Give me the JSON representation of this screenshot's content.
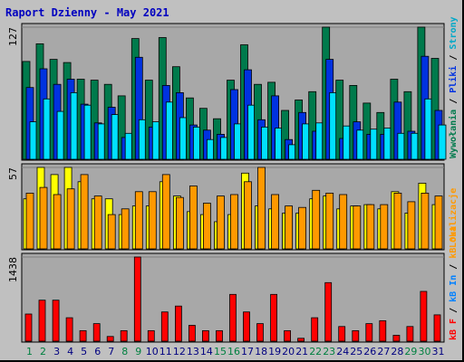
{
  "chart_data": [
    {
      "type": "bar",
      "title": "Raport Dzienny -  May 2021",
      "ytick": "127",
      "ylim": [
        0,
        127
      ],
      "categories": [
        "1",
        "2",
        "3",
        "4",
        "5",
        "6",
        "7",
        "8",
        "9",
        "10",
        "11",
        "12",
        "13",
        "14",
        "15",
        "16",
        "17",
        "18",
        "19",
        "20",
        "21",
        "22",
        "23",
        "24",
        "25",
        "26",
        "27",
        "28",
        "29",
        "30",
        "31"
      ],
      "weekend_days": [
        "1",
        "2",
        "8",
        "9",
        "15",
        "16",
        "22",
        "23",
        "29",
        "30"
      ],
      "series": [
        {
          "name": "Wywołania",
          "color": "#007a4c",
          "values": [
            94,
            111,
            96,
            93,
            77,
            76,
            72,
            61,
            116,
            76,
            117,
            89,
            59,
            49,
            39,
            76,
            110,
            72,
            74,
            47,
            57,
            65,
            127,
            76,
            71,
            54,
            45,
            77,
            65,
            127,
            97
          ]
        },
        {
          "name": "Pliki",
          "color": "#0032e0",
          "values": [
            69,
            87,
            72,
            77,
            53,
            35,
            50,
            21,
            98,
            31,
            71,
            64,
            33,
            28,
            24,
            67,
            86,
            38,
            61,
            19,
            45,
            27,
            96,
            20,
            36,
            24,
            24,
            55,
            27,
            99,
            47
          ]
        },
        {
          "name": "Strony",
          "color": "#00e0ff",
          "values": [
            36,
            58,
            46,
            64,
            52,
            34,
            43,
            25,
            38,
            36,
            55,
            40,
            31,
            19,
            21,
            34,
            52,
            31,
            30,
            14,
            34,
            35,
            64,
            32,
            28,
            29,
            30,
            25,
            25,
            58,
            33
          ]
        }
      ]
    },
    {
      "type": "bar",
      "ytick": "57",
      "ylim": [
        0,
        57
      ],
      "categories": [
        "1",
        "2",
        "3",
        "4",
        "5",
        "6",
        "7",
        "8",
        "9",
        "10",
        "11",
        "12",
        "13",
        "14",
        "15",
        "16",
        "17",
        "18",
        "19",
        "20",
        "21",
        "22",
        "23",
        "24",
        "25",
        "26",
        "27",
        "28",
        "29",
        "30",
        "31"
      ],
      "series": [
        {
          "name": "Wizyty",
          "color": "#ffff00",
          "values": [
            35,
            57,
            52,
            57,
            47,
            35,
            35,
            24,
            30,
            30,
            47,
            37,
            26,
            24,
            19,
            24,
            53,
            30,
            28,
            25,
            25,
            35,
            37,
            28,
            30,
            31,
            28,
            40,
            25,
            46,
            31
          ]
        },
        {
          "name": "Lokalizacje",
          "color": "#ff9900",
          "values": [
            39,
            43,
            38,
            42,
            52,
            37,
            24,
            28,
            40,
            40,
            52,
            36,
            44,
            32,
            37,
            38,
            47,
            57,
            38,
            30,
            29,
            41,
            39,
            38,
            30,
            31,
            31,
            39,
            33,
            39,
            37
          ]
        }
      ]
    },
    {
      "type": "bar",
      "ytick": "1438",
      "ylim": [
        0,
        1438
      ],
      "categories": [
        "1",
        "2",
        "3",
        "4",
        "5",
        "6",
        "7",
        "8",
        "9",
        "10",
        "11",
        "12",
        "13",
        "14",
        "15",
        "16",
        "17",
        "18",
        "19",
        "20",
        "21",
        "22",
        "23",
        "24",
        "25",
        "26",
        "27",
        "28",
        "29",
        "30",
        "31"
      ],
      "series": [
        {
          "name": "kB F",
          "color": "#ff0000",
          "values": [
            464,
            700,
            700,
            400,
            180,
            300,
            80,
            180,
            1438,
            180,
            500,
            600,
            270,
            180,
            180,
            800,
            500,
            300,
            800,
            180,
            50,
            400,
            1000,
            250,
            180,
            300,
            350,
            100,
            250,
            850,
            450
          ]
        }
      ]
    }
  ],
  "right_legend": {
    "top": [
      {
        "text": "Wywołania",
        "color": "#007a4c"
      },
      {
        "text": " / ",
        "color": "#000000"
      },
      {
        "text": "Pliki",
        "color": "#0032e0"
      },
      {
        "text": " / ",
        "color": "#000000"
      },
      {
        "text": "Strony",
        "color": "#00a8c8"
      }
    ],
    "middle": [
      {
        "text": "Lokalizacje",
        "color": "#ff9900"
      }
    ],
    "bottom": [
      {
        "text": "kB F",
        "color": "#ff0000"
      },
      {
        "text": " / ",
        "color": "#000000"
      },
      {
        "text": "kB In",
        "color": "#0080ff"
      },
      {
        "text": " / ",
        "color": "#000000"
      },
      {
        "text": "kB Out",
        "color": "#ff9900"
      }
    ]
  },
  "colors": {
    "background": "#c0c0c0",
    "plot_bg": "#a8a8a8",
    "title": "#0000c0",
    "weekday_label": "#000080",
    "weekend_label": "#008040"
  }
}
